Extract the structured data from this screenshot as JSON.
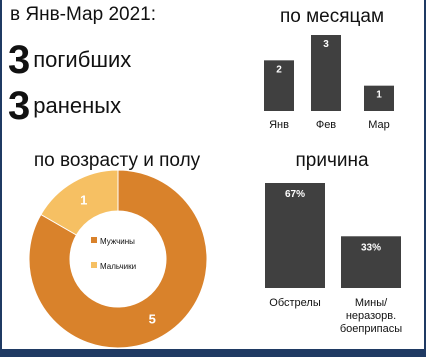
{
  "header": {
    "period": "в Янв-Мар 2021:",
    "killed": {
      "number": "3",
      "label": "погибших"
    },
    "injured": {
      "number": "3",
      "label": "раненых"
    }
  },
  "colors": {
    "bar": "#404040",
    "orange": "#d9822b",
    "light_orange": "#f6c063",
    "frame": "#1f3a63"
  },
  "chart_data": [
    {
      "type": "bar",
      "title": "по месяцам",
      "categories": [
        "Янв",
        "Фев",
        "Мар"
      ],
      "values": [
        2,
        3,
        1
      ],
      "ylim": [
        0,
        3
      ]
    },
    {
      "type": "pie",
      "title": "по возрасту и полу",
      "labels": [
        "Мужчины",
        "Мальчики"
      ],
      "values": [
        5,
        1
      ],
      "colors": [
        "#d9822b",
        "#f6c063"
      ],
      "legend": "center"
    },
    {
      "type": "bar",
      "title": "причина",
      "categories": [
        "Обстрелы",
        "Мины/\nнеразорв.\nбоеприпасы"
      ],
      "values": [
        67,
        33
      ],
      "value_labels": [
        "67%",
        "33%"
      ],
      "ylim": [
        0,
        67
      ]
    }
  ]
}
